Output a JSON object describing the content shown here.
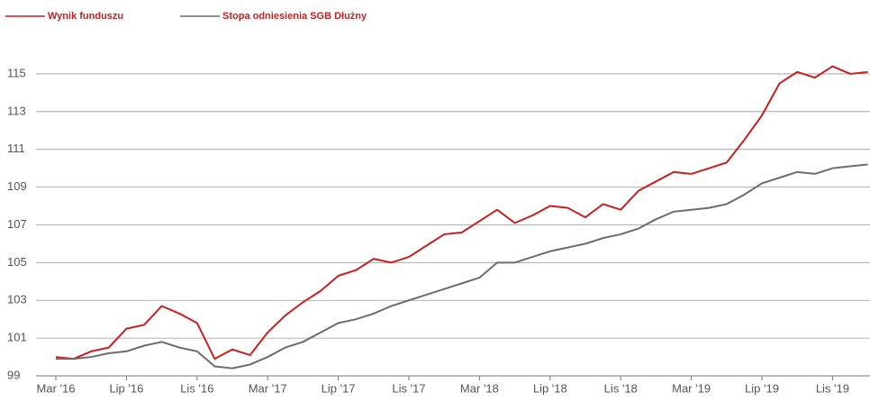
{
  "chart_data": {
    "type": "line",
    "categories": [
      "Mar '16",
      null,
      null,
      null,
      "Lip '16",
      null,
      null,
      null,
      "Lis '16",
      null,
      null,
      null,
      "Mar '17",
      null,
      null,
      null,
      "Lip '17",
      null,
      null,
      null,
      "Lis '17",
      null,
      null,
      null,
      "Mar '18",
      null,
      null,
      null,
      "Lip '18",
      null,
      null,
      null,
      "Lis '18",
      null,
      null,
      null,
      "Mar '19",
      null,
      null,
      null,
      "Lip '19",
      null,
      null,
      null,
      "Lis '19",
      null,
      null
    ],
    "series": [
      {
        "name": "Wynik funduszu",
        "color": "#c8201e",
        "values": [
          100.0,
          99.9,
          100.3,
          100.5,
          101.5,
          101.7,
          102.7,
          102.3,
          101.8,
          99.9,
          100.4,
          100.1,
          101.3,
          102.2,
          102.9,
          103.5,
          104.3,
          104.6,
          105.2,
          105.0,
          105.3,
          105.9,
          106.5,
          106.6,
          107.2,
          107.8,
          107.1,
          107.5,
          108.0,
          107.9,
          107.4,
          108.1,
          107.8,
          108.8,
          109.3,
          109.8,
          109.7,
          110.0,
          110.3,
          111.5,
          112.8,
          114.5,
          115.1,
          114.8,
          115.4,
          115.0,
          115.1
        ]
      },
      {
        "name": "Stopa odniesienia SGB Dłużny",
        "color": "#6d6d6d",
        "values": [
          99.9,
          99.9,
          100.0,
          100.2,
          100.3,
          100.6,
          100.8,
          100.5,
          100.3,
          99.5,
          99.4,
          99.6,
          100.0,
          100.5,
          100.8,
          101.3,
          101.8,
          102.0,
          102.3,
          102.7,
          103.0,
          103.3,
          103.6,
          103.9,
          104.2,
          105.0,
          105.0,
          105.3,
          105.6,
          105.8,
          106.0,
          106.3,
          106.5,
          106.8,
          107.3,
          107.7,
          107.8,
          107.9,
          108.1,
          108.6,
          109.2,
          109.5,
          109.8,
          109.7,
          110.0,
          110.1,
          110.2
        ]
      }
    ],
    "ylim": [
      99,
      116
    ],
    "yticks": [
      99,
      101,
      103,
      105,
      107,
      109,
      111,
      113,
      115
    ],
    "grid": true,
    "legend": "top-left"
  }
}
